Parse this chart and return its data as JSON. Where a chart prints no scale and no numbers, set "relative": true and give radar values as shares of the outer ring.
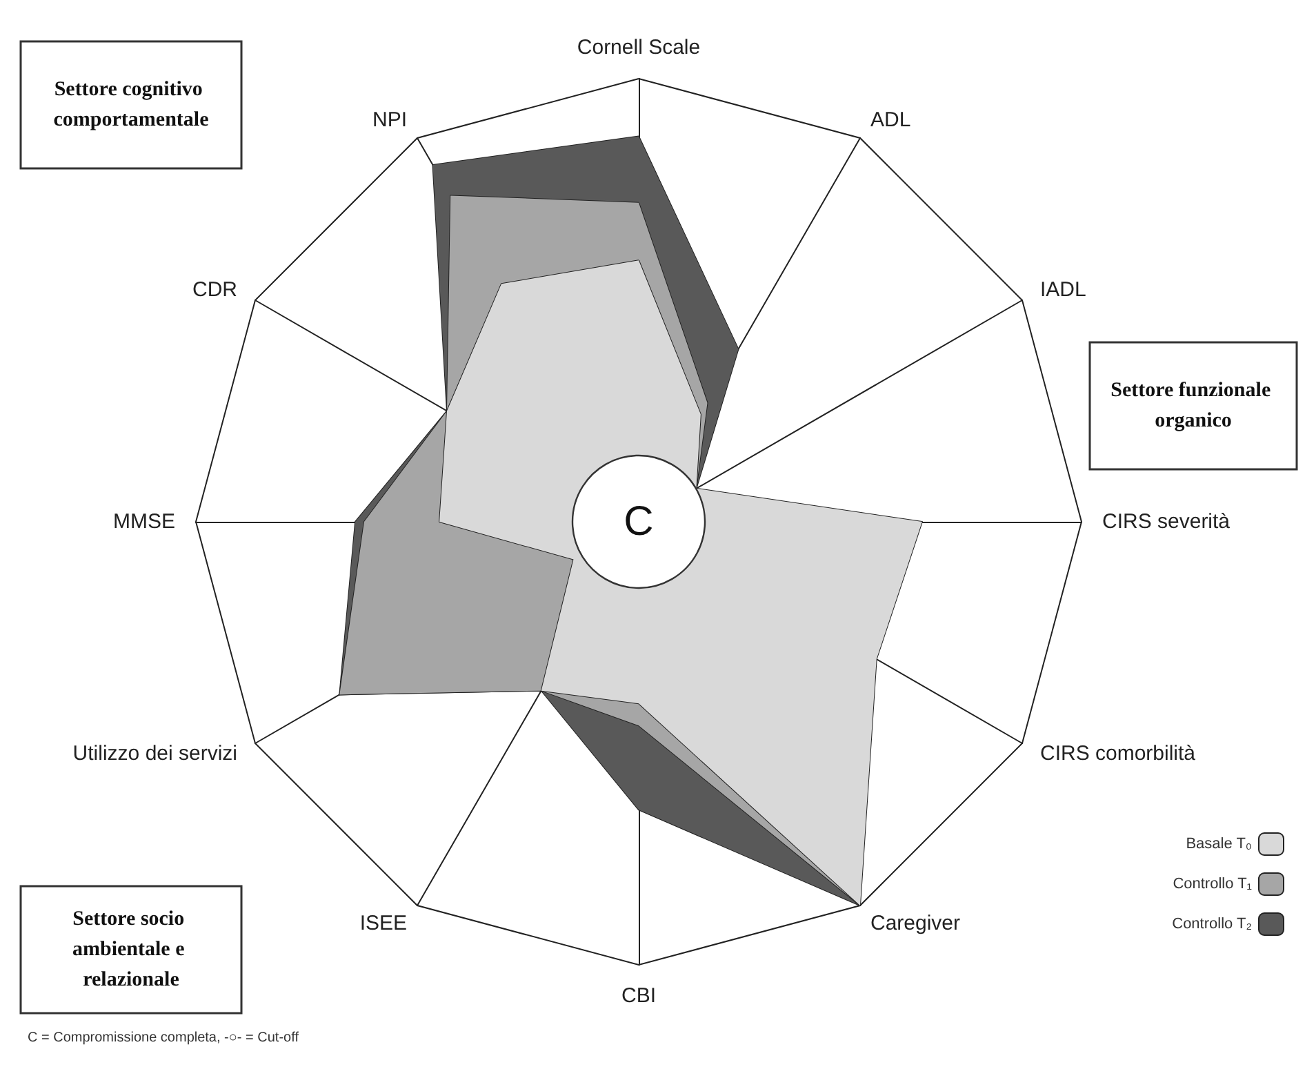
{
  "chart_data": {
    "type": "radar",
    "relative": true,
    "categories": [
      "Cornell Scale",
      "ADL",
      "IADL",
      "CIRS severità",
      "CIRS comorbilità",
      "Caregiver",
      "CBI",
      "ISEE",
      "Utilizzo dei servizi",
      "MMSE",
      "CDR",
      "NPI"
    ],
    "series": [
      {
        "name": "Basale T₀",
        "color": "#d9d9d9",
        "values": [
          0.59,
          0.28,
          0.15,
          0.64,
          0.62,
          1,
          0.41,
          0.44,
          0.17,
          0.45,
          0.5,
          0.62
        ]
      },
      {
        "name": "Controllo T₁",
        "color": "#a6a6a6",
        "values": [
          0.72,
          0.31,
          0.15,
          0.14,
          0.14,
          1,
          0.46,
          0.44,
          0.78,
          0.62,
          0.5,
          0.85
        ]
      },
      {
        "name": "Controllo T₂",
        "color": "#595959",
        "values": [
          0.87,
          0.45,
          0.15,
          0.14,
          0.14,
          1,
          0.65,
          0.44,
          0.78,
          0.64,
          0.5,
          0.93
        ]
      }
    ],
    "legend": "bottom right",
    "annotations": [
      "Settore cognitivo comportamentale",
      "Settore funzionale organico",
      "Settore socio ambientale e relazionale",
      "C",
      "C = Compromissione completa, -○- = Cut-off"
    ]
  }
}
